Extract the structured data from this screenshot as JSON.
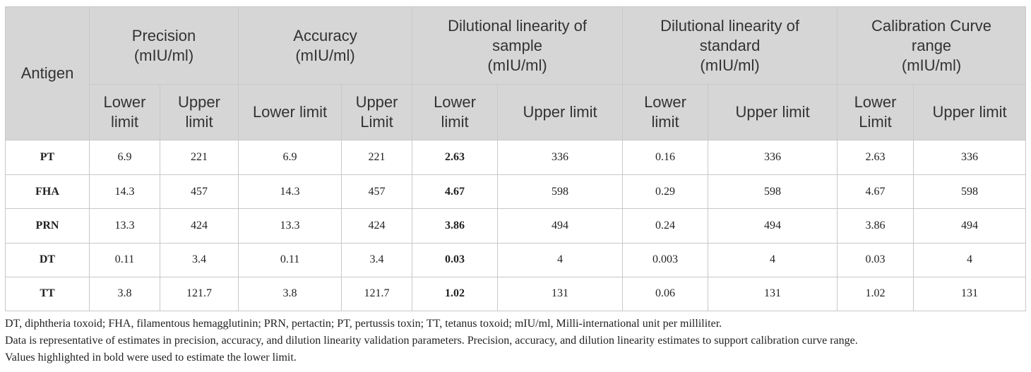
{
  "table": {
    "antigen_header": "Antigen",
    "groups": [
      {
        "line1": "Precision",
        "line2": "(mIU/ml)",
        "line3": ""
      },
      {
        "line1": "Accuracy",
        "line2": "(mIU/ml)",
        "line3": ""
      },
      {
        "line1": "Dilutional linearity of",
        "line2": "sample",
        "line3": "(mIU/ml)"
      },
      {
        "line1": "Dilutional linearity of",
        "line2": "standard",
        "line3": "(mIU/ml)"
      },
      {
        "line1": "Calibration Curve",
        "line2": "range",
        "line3": "(mIU/ml)"
      }
    ],
    "subheaders": [
      {
        "line1": "Lower",
        "line2": "limit"
      },
      {
        "line1": "Upper",
        "line2": "limit"
      },
      {
        "line1": "Lower limit",
        "line2": ""
      },
      {
        "line1": "Upper",
        "line2": "Limit"
      },
      {
        "line1": "Lower",
        "line2": "limit"
      },
      {
        "line1": "Upper limit",
        "line2": ""
      },
      {
        "line1": "Lower",
        "line2": "limit"
      },
      {
        "line1": "Upper limit",
        "line2": ""
      },
      {
        "line1": "Lower",
        "line2": "Limit"
      },
      {
        "line1": "Upper limit",
        "line2": ""
      }
    ],
    "rows": [
      {
        "antigen": "PT",
        "values": [
          "6.9",
          "221",
          "6.9",
          "221",
          "2.63",
          "336",
          "0.16",
          "336",
          "2.63",
          "336"
        ]
      },
      {
        "antigen": "FHA",
        "values": [
          "14.3",
          "457",
          "14.3",
          "457",
          "4.67",
          "598",
          "0.29",
          "598",
          "4.67",
          "598"
        ]
      },
      {
        "antigen": "PRN",
        "values": [
          "13.3",
          "424",
          "13.3",
          "424",
          "3.86",
          "494",
          "0.24",
          "494",
          "3.86",
          "494"
        ]
      },
      {
        "antigen": "DT",
        "values": [
          "0.11",
          "3.4",
          "0.11",
          "3.4",
          "0.03",
          "4",
          "0.003",
          "4",
          "0.03",
          "4"
        ]
      },
      {
        "antigen": "TT",
        "values": [
          "3.8",
          "121.7",
          "3.8",
          "121.7",
          "1.02",
          "131",
          "0.06",
          "131",
          "1.02",
          "131"
        ]
      }
    ]
  },
  "footnotes": [
    "DT, diphtheria toxoid; FHA, filamentous hemagglutinin; PRN, pertactin; PT, pertussis toxin; TT, tetanus toxoid; mIU/ml, Milli-international unit per milliliter.",
    "Data is representative of estimates in precision, accuracy, and dilution linearity validation parameters. Precision, accuracy, and dilution linearity estimates to support calibration curve range.",
    "Values highlighted in bold were used to estimate the lower limit."
  ]
}
